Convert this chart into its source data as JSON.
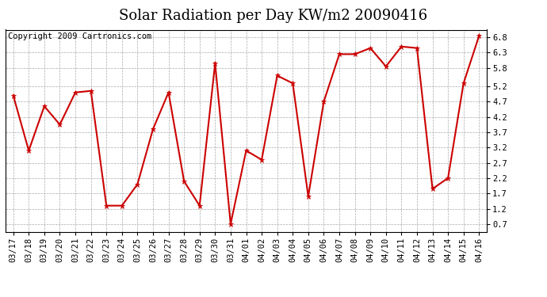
{
  "title": "Solar Radiation per Day KW/m2 20090416",
  "copyright": "Copyright 2009 Cartronics.com",
  "labels": [
    "03/17",
    "03/18",
    "03/19",
    "03/20",
    "03/21",
    "03/22",
    "03/23",
    "03/24",
    "03/25",
    "03/26",
    "03/27",
    "03/28",
    "03/29",
    "03/30",
    "03/31",
    "04/01",
    "04/02",
    "04/03",
    "04/04",
    "04/05",
    "04/06",
    "04/07",
    "04/08",
    "04/09",
    "04/10",
    "04/11",
    "04/12",
    "04/13",
    "04/14",
    "04/15",
    "04/16"
  ],
  "values": [
    4.9,
    3.1,
    4.55,
    3.95,
    5.0,
    5.05,
    1.3,
    1.3,
    2.0,
    3.8,
    5.0,
    2.1,
    1.3,
    5.95,
    0.7,
    3.1,
    2.8,
    5.55,
    5.3,
    1.6,
    4.7,
    6.25,
    6.25,
    6.45,
    5.85,
    6.5,
    6.45,
    1.85,
    2.2,
    5.3,
    6.85
  ],
  "line_color": "#cc0000",
  "marker_color": "#cc0000",
  "bg_color": "#ffffff",
  "plot_bg_color": "#ffffff",
  "grid_color": "#aaaaaa",
  "title_fontsize": 13,
  "copyright_fontsize": 7.5,
  "yticks": [
    0.7,
    1.2,
    1.7,
    2.2,
    2.7,
    3.2,
    3.7,
    4.2,
    4.7,
    5.2,
    5.8,
    6.3,
    6.8
  ],
  "ylim": [
    0.45,
    7.05
  ],
  "tick_fontsize": 7.5
}
